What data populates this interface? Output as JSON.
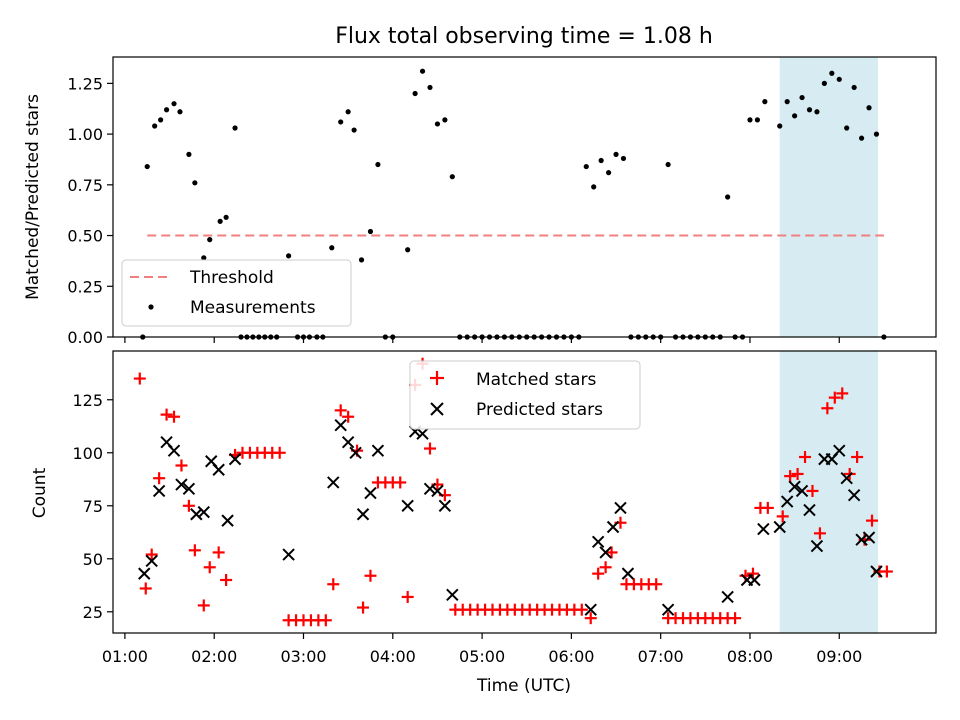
{
  "title": "Flux total observing time = 1.08 h",
  "colors": {
    "threshold": "#f08080",
    "measurements": "#000000",
    "matched": "#ff0000",
    "predicted": "#000000",
    "highlight": "#add8e6"
  },
  "chart_data": [
    {
      "type": "scatter",
      "ylabel": "Matched/Predicted stars",
      "ylim": [
        0,
        1.38
      ],
      "yticks": [
        "0.00",
        "0.25",
        "0.50",
        "0.75",
        "1.00",
        "1.25"
      ],
      "ytick_values": [
        0,
        0.25,
        0.5,
        0.75,
        1.0,
        1.25
      ],
      "threshold": {
        "name": "Threshold",
        "y": 0.5,
        "x_range": [
          "01:15",
          "09:30"
        ]
      },
      "highlight_span": [
        "08:20",
        "09:26"
      ],
      "legend": {
        "position": "lower-left",
        "entries": [
          "Threshold",
          "Measurements"
        ]
      },
      "series": [
        {
          "name": "Measurements",
          "points": [
            [
              "01:12",
              0.0
            ],
            [
              "01:15",
              0.84
            ],
            [
              "01:20",
              1.04
            ],
            [
              "01:24",
              1.07
            ],
            [
              "01:28",
              1.12
            ],
            [
              "01:33",
              1.15
            ],
            [
              "01:37",
              1.11
            ],
            [
              "01:43",
              0.9
            ],
            [
              "01:47",
              0.76
            ],
            [
              "01:53",
              0.39
            ],
            [
              "01:57",
              0.48
            ],
            [
              "02:04",
              0.57
            ],
            [
              "02:08",
              0.59
            ],
            [
              "02:14",
              1.03
            ],
            [
              "02:18",
              0.0
            ],
            [
              "02:22",
              0.0
            ],
            [
              "02:26",
              0.0
            ],
            [
              "02:30",
              0.0
            ],
            [
              "02:34",
              0.0
            ],
            [
              "02:38",
              0.0
            ],
            [
              "02:42",
              0.0
            ],
            [
              "02:50",
              0.4
            ],
            [
              "02:56",
              0.0
            ],
            [
              "03:00",
              0.0
            ],
            [
              "03:04",
              0.0
            ],
            [
              "03:09",
              0.0
            ],
            [
              "03:13",
              0.0
            ],
            [
              "03:19",
              0.44
            ],
            [
              "03:25",
              1.06
            ],
            [
              "03:30",
              1.11
            ],
            [
              "03:34",
              1.02
            ],
            [
              "03:39",
              0.38
            ],
            [
              "03:45",
              0.52
            ],
            [
              "03:50",
              0.85
            ],
            [
              "03:55",
              0.0
            ],
            [
              "04:00",
              0.0
            ],
            [
              "04:10",
              0.43
            ],
            [
              "04:15",
              1.2
            ],
            [
              "04:20",
              1.31
            ],
            [
              "04:25",
              1.23
            ],
            [
              "04:30",
              1.05
            ],
            [
              "04:35",
              1.07
            ],
            [
              "04:40",
              0.79
            ],
            [
              "04:45",
              0.0
            ],
            [
              "04:50",
              0.0
            ],
            [
              "04:55",
              0.0
            ],
            [
              "05:00",
              0.0
            ],
            [
              "05:05",
              0.0
            ],
            [
              "05:10",
              0.0
            ],
            [
              "05:15",
              0.0
            ],
            [
              "05:20",
              0.0
            ],
            [
              "05:25",
              0.0
            ],
            [
              "05:30",
              0.0
            ],
            [
              "05:35",
              0.0
            ],
            [
              "05:40",
              0.0
            ],
            [
              "05:45",
              0.0
            ],
            [
              "05:50",
              0.0
            ],
            [
              "05:55",
              0.0
            ],
            [
              "06:00",
              0.0
            ],
            [
              "06:05",
              0.0
            ],
            [
              "06:10",
              0.84
            ],
            [
              "06:15",
              0.74
            ],
            [
              "06:20",
              0.87
            ],
            [
              "06:25",
              0.81
            ],
            [
              "06:30",
              0.9
            ],
            [
              "06:35",
              0.88
            ],
            [
              "06:40",
              0.0
            ],
            [
              "06:45",
              0.0
            ],
            [
              "06:50",
              0.0
            ],
            [
              "06:55",
              0.0
            ],
            [
              "07:00",
              0.0
            ],
            [
              "07:05",
              0.85
            ],
            [
              "07:10",
              0.0
            ],
            [
              "07:15",
              0.0
            ],
            [
              "07:20",
              0.0
            ],
            [
              "07:25",
              0.0
            ],
            [
              "07:30",
              0.0
            ],
            [
              "07:35",
              0.0
            ],
            [
              "07:40",
              0.0
            ],
            [
              "07:45",
              0.69
            ],
            [
              "07:50",
              0.0
            ],
            [
              "07:55",
              0.0
            ],
            [
              "08:00",
              1.07
            ],
            [
              "08:05",
              1.07
            ],
            [
              "08:10",
              1.16
            ],
            [
              "08:20",
              1.04
            ],
            [
              "08:25",
              1.16
            ],
            [
              "08:30",
              1.09
            ],
            [
              "08:35",
              1.18
            ],
            [
              "08:40",
              1.12
            ],
            [
              "08:45",
              1.11
            ],
            [
              "08:50",
              1.25
            ],
            [
              "08:55",
              1.3
            ],
            [
              "09:00",
              1.27
            ],
            [
              "09:05",
              1.03
            ],
            [
              "09:10",
              1.23
            ],
            [
              "09:15",
              0.98
            ],
            [
              "09:20",
              1.13
            ],
            [
              "09:25",
              1.0
            ],
            [
              "09:30",
              0.0
            ]
          ]
        }
      ]
    },
    {
      "type": "scatter",
      "xlabel": "Time (UTC)",
      "ylabel": "Count",
      "ylim": [
        15,
        148
      ],
      "yticks": [
        "25",
        "50",
        "75",
        "100",
        "125"
      ],
      "ytick_values": [
        25,
        50,
        75,
        100,
        125
      ],
      "xticks": [
        "01:00",
        "02:00",
        "03:00",
        "04:00",
        "05:00",
        "06:00",
        "07:00",
        "08:00",
        "09:00"
      ],
      "xlim": [
        "00:52",
        "10:05"
      ],
      "highlight_span": [
        "08:20",
        "09:26"
      ],
      "legend": {
        "position": "upper-center",
        "entries": [
          "Matched stars",
          "Predicted stars"
        ]
      },
      "series": [
        {
          "name": "Matched stars",
          "marker": "plus",
          "points": [
            [
              "01:10",
              135
            ],
            [
              "01:14",
              36
            ],
            [
              "01:18",
              52
            ],
            [
              "01:23",
              88
            ],
            [
              "01:28",
              118
            ],
            [
              "01:33",
              117
            ],
            [
              "01:38",
              94
            ],
            [
              "01:43",
              75
            ],
            [
              "01:47",
              54
            ],
            [
              "01:53",
              28
            ],
            [
              "01:57",
              46
            ],
            [
              "02:03",
              53
            ],
            [
              "02:08",
              40
            ],
            [
              "02:14",
              99
            ],
            [
              "02:19",
              100
            ],
            [
              "02:24",
              100
            ],
            [
              "02:29",
              100
            ],
            [
              "02:34",
              100
            ],
            [
              "02:39",
              100
            ],
            [
              "02:44",
              100
            ],
            [
              "02:50",
              21
            ],
            [
              "02:55",
              21
            ],
            [
              "03:00",
              21
            ],
            [
              "03:05",
              21
            ],
            [
              "03:10",
              21
            ],
            [
              "03:15",
              21
            ],
            [
              "03:20",
              38
            ],
            [
              "03:25",
              120
            ],
            [
              "03:30",
              117
            ],
            [
              "03:36",
              101
            ],
            [
              "03:40",
              27
            ],
            [
              "03:45",
              42
            ],
            [
              "03:50",
              86
            ],
            [
              "03:55",
              86
            ],
            [
              "04:00",
              86
            ],
            [
              "04:05",
              86
            ],
            [
              "04:10",
              32
            ],
            [
              "04:15",
              132
            ],
            [
              "04:20",
              142
            ],
            [
              "04:25",
              102
            ],
            [
              "04:30",
              85
            ],
            [
              "04:35",
              80
            ],
            [
              "04:42",
              26
            ],
            [
              "04:47",
              26
            ],
            [
              "04:52",
              26
            ],
            [
              "04:57",
              26
            ],
            [
              "05:02",
              26
            ],
            [
              "05:07",
              26
            ],
            [
              "05:12",
              26
            ],
            [
              "05:17",
              26
            ],
            [
              "05:22",
              26
            ],
            [
              "05:27",
              26
            ],
            [
              "05:32",
              26
            ],
            [
              "05:37",
              26
            ],
            [
              "05:42",
              26
            ],
            [
              "05:47",
              26
            ],
            [
              "05:52",
              26
            ],
            [
              "05:57",
              26
            ],
            [
              "06:02",
              26
            ],
            [
              "06:07",
              26
            ],
            [
              "06:13",
              22
            ],
            [
              "06:18",
              43
            ],
            [
              "06:23",
              46
            ],
            [
              "06:27",
              53
            ],
            [
              "06:33",
              67
            ],
            [
              "06:37",
              38
            ],
            [
              "06:42",
              38
            ],
            [
              "06:47",
              38
            ],
            [
              "06:52",
              38
            ],
            [
              "06:57",
              38
            ],
            [
              "07:05",
              22
            ],
            [
              "07:10",
              22
            ],
            [
              "07:15",
              22
            ],
            [
              "07:20",
              22
            ],
            [
              "07:25",
              22
            ],
            [
              "07:30",
              22
            ],
            [
              "07:35",
              22
            ],
            [
              "07:40",
              22
            ],
            [
              "07:45",
              22
            ],
            [
              "07:50",
              22
            ],
            [
              "07:57",
              42
            ],
            [
              "08:02",
              43
            ],
            [
              "08:07",
              74
            ],
            [
              "08:12",
              74
            ],
            [
              "08:22",
              70
            ],
            [
              "08:27",
              89
            ],
            [
              "08:32",
              90
            ],
            [
              "08:37",
              98
            ],
            [
              "08:42",
              82
            ],
            [
              "08:47",
              62
            ],
            [
              "08:52",
              121
            ],
            [
              "08:57",
              126
            ],
            [
              "09:02",
              128
            ],
            [
              "09:07",
              90
            ],
            [
              "09:12",
              98
            ],
            [
              "09:17",
              59
            ],
            [
              "09:22",
              68
            ],
            [
              "09:27",
              44
            ],
            [
              "09:32",
              44
            ]
          ]
        },
        {
          "name": "Predicted stars",
          "marker": "x",
          "points": [
            [
              "01:13",
              43
            ],
            [
              "01:18",
              49
            ],
            [
              "01:23",
              82
            ],
            [
              "01:28",
              105
            ],
            [
              "01:33",
              101
            ],
            [
              "01:38",
              85
            ],
            [
              "01:43",
              83
            ],
            [
              "01:48",
              71
            ],
            [
              "01:53",
              72
            ],
            [
              "01:58",
              96
            ],
            [
              "02:03",
              92
            ],
            [
              "02:09",
              68
            ],
            [
              "02:14",
              97
            ],
            [
              "02:50",
              52
            ],
            [
              "03:20",
              86
            ],
            [
              "03:25",
              113
            ],
            [
              "03:30",
              105
            ],
            [
              "03:35",
              100
            ],
            [
              "03:40",
              71
            ],
            [
              "03:45",
              81
            ],
            [
              "03:50",
              101
            ],
            [
              "04:10",
              75
            ],
            [
              "04:15",
              110
            ],
            [
              "04:20",
              109
            ],
            [
              "04:25",
              83
            ],
            [
              "04:30",
              82
            ],
            [
              "04:35",
              75
            ],
            [
              "04:40",
              33
            ],
            [
              "06:13",
              26
            ],
            [
              "06:18",
              58
            ],
            [
              "06:23",
              53
            ],
            [
              "06:28",
              65
            ],
            [
              "06:33",
              74
            ],
            [
              "06:38",
              43
            ],
            [
              "07:05",
              26
            ],
            [
              "07:45",
              32
            ],
            [
              "07:58",
              40
            ],
            [
              "08:03",
              40
            ],
            [
              "08:09",
              64
            ],
            [
              "08:20",
              65
            ],
            [
              "08:25",
              77
            ],
            [
              "08:30",
              84
            ],
            [
              "08:35",
              82
            ],
            [
              "08:40",
              73
            ],
            [
              "08:45",
              56
            ],
            [
              "08:50",
              97
            ],
            [
              "08:55",
              97
            ],
            [
              "09:00",
              101
            ],
            [
              "09:05",
              88
            ],
            [
              "09:10",
              80
            ],
            [
              "09:15",
              59
            ],
            [
              "09:20",
              60
            ],
            [
              "09:25",
              44
            ]
          ]
        }
      ]
    }
  ]
}
